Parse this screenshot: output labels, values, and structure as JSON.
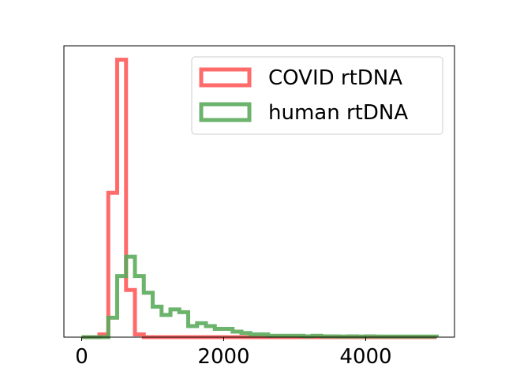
{
  "chart_data": {
    "type": "histogram",
    "title": "",
    "xlabel": "",
    "ylabel": "",
    "xlim": [
      -250,
      5250
    ],
    "ylim": [
      0,
      1.05
    ],
    "x_ticks": [
      0,
      2000,
      4000
    ],
    "x_tick_labels": [
      "0",
      "2000",
      "4000"
    ],
    "y_ticks": [],
    "grid": false,
    "legend_position": "top-right",
    "histtype": "step",
    "bin_edges": [
      0,
      125,
      250,
      375,
      500,
      625,
      750,
      875,
      1000,
      1125,
      1250,
      1375,
      1500,
      1625,
      1750,
      1875,
      2000,
      2125,
      2250,
      2375,
      2500,
      2625,
      2750,
      2875,
      3000,
      3125,
      3250,
      3375,
      3500,
      3625,
      3750,
      3875,
      4000,
      4125,
      4250,
      4375,
      4500,
      4625,
      4750,
      4875,
      5000
    ],
    "series": [
      {
        "name": "COVID rtDNA",
        "color": "#ff5b5b",
        "values": [
          0,
          0,
          0.01,
          0.52,
          1.0,
          0.17,
          0.01,
          0,
          0,
          0,
          0,
          0,
          0,
          0,
          0,
          0,
          0,
          0,
          0,
          0,
          0,
          0,
          0,
          0,
          0,
          0,
          0,
          0,
          0,
          0,
          0,
          0,
          0,
          0,
          0,
          0,
          0,
          0,
          0,
          0
        ]
      },
      {
        "name": "human rtDNA",
        "color": "#5cab5c",
        "values": [
          0,
          0,
          0,
          0.07,
          0.22,
          0.29,
          0.22,
          0.16,
          0.11,
          0.08,
          0.1,
          0.09,
          0.04,
          0.05,
          0.04,
          0.03,
          0.03,
          0.02,
          0.015,
          0.01,
          0.01,
          0.005,
          0.005,
          0.005,
          0.005,
          0.003,
          0.005,
          0.003,
          0.003,
          0.002,
          0.003,
          0.002,
          0.003,
          0.002,
          0.002,
          0.002,
          0.002,
          0.002,
          0.002,
          0.002
        ]
      }
    ]
  }
}
